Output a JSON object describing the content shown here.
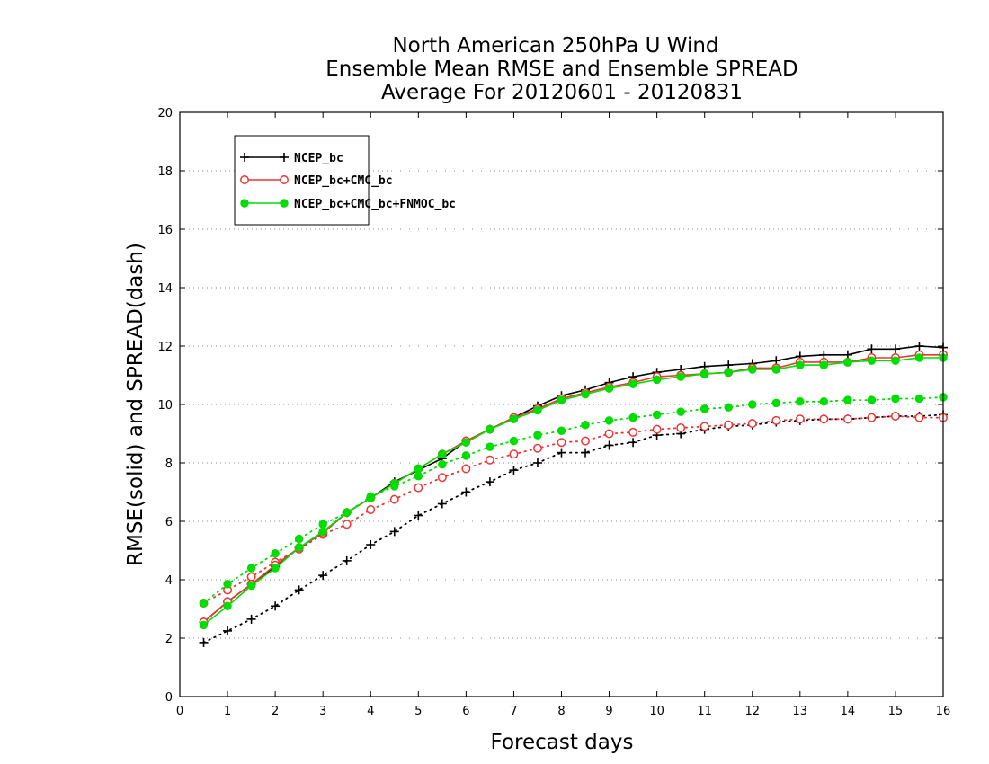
{
  "chart_data": {
    "type": "line",
    "title": [
      "North American 250hPa U Wind",
      "Ensemble Mean RMSE and Ensemble SPREAD",
      "Average For 20120601 - 20120831"
    ],
    "xlabel": "Forecast days",
    "ylabel": "RMSE(solid) and SPREAD(dash)",
    "xlim": [
      0,
      16
    ],
    "ylim": [
      0,
      20
    ],
    "xticks": [
      0,
      1,
      2,
      3,
      4,
      5,
      6,
      7,
      8,
      9,
      10,
      11,
      12,
      13,
      14,
      15,
      16
    ],
    "yticks": [
      0,
      2,
      4,
      6,
      8,
      10,
      12,
      14,
      16,
      18,
      20
    ],
    "grid": "horizontal dotted",
    "legend_position": "top-left",
    "x": [
      0.5,
      1,
      1.5,
      2,
      2.5,
      3,
      3.5,
      4,
      4.5,
      5,
      5.5,
      6,
      6.5,
      7,
      7.5,
      8,
      8.5,
      9,
      9.5,
      10,
      10.5,
      11,
      11.5,
      12,
      12.5,
      13,
      13.5,
      14,
      14.5,
      15,
      15.5,
      16
    ],
    "series": [
      {
        "name": "NCEP_bc",
        "color": "#000000",
        "marker": "plus",
        "rmse": [
          2.55,
          3.25,
          3.85,
          4.45,
          5.1,
          5.6,
          6.3,
          6.8,
          7.35,
          7.75,
          8.15,
          8.75,
          9.15,
          9.55,
          9.95,
          10.3,
          10.5,
          10.75,
          10.95,
          11.1,
          11.2,
          11.3,
          11.35,
          11.4,
          11.5,
          11.65,
          11.7,
          11.7,
          11.9,
          11.9,
          12.0,
          11.95
        ],
        "spread": [
          1.85,
          2.25,
          2.65,
          3.1,
          3.65,
          4.15,
          4.65,
          5.2,
          5.65,
          6.2,
          6.6,
          7.0,
          7.35,
          7.75,
          8.0,
          8.35,
          8.35,
          8.6,
          8.7,
          8.95,
          9.0,
          9.15,
          9.25,
          9.3,
          9.4,
          9.45,
          9.5,
          9.5,
          9.55,
          9.6,
          9.6,
          9.65
        ]
      },
      {
        "name": "NCEP_bc+CMC_bc",
        "color": "#ee3333",
        "marker": "open-circle",
        "rmse": [
          2.55,
          3.25,
          3.85,
          4.5,
          5.1,
          5.6,
          6.3,
          6.8,
          7.3,
          7.8,
          8.3,
          8.75,
          9.15,
          9.55,
          9.85,
          10.2,
          10.4,
          10.6,
          10.75,
          10.95,
          11.0,
          11.05,
          11.1,
          11.25,
          11.25,
          11.45,
          11.45,
          11.45,
          11.6,
          11.6,
          11.7,
          11.7
        ],
        "spread": [
          3.2,
          3.65,
          4.1,
          4.6,
          5.05,
          5.55,
          5.9,
          6.4,
          6.75,
          7.15,
          7.5,
          7.8,
          8.1,
          8.3,
          8.5,
          8.7,
          8.75,
          9.0,
          9.05,
          9.15,
          9.2,
          9.25,
          9.3,
          9.35,
          9.45,
          9.5,
          9.5,
          9.5,
          9.55,
          9.6,
          9.55,
          9.55
        ]
      },
      {
        "name": "NCEP_bc+CMC_bc+FNMOC_bc",
        "color": "#00dd00",
        "marker": "filled-circle",
        "rmse": [
          2.45,
          3.1,
          3.8,
          4.4,
          5.1,
          5.65,
          6.3,
          6.8,
          7.3,
          7.8,
          8.3,
          8.7,
          9.15,
          9.5,
          9.8,
          10.15,
          10.35,
          10.55,
          10.7,
          10.85,
          10.95,
          11.05,
          11.1,
          11.2,
          11.2,
          11.35,
          11.35,
          11.45,
          11.5,
          11.5,
          11.6,
          11.6
        ],
        "spread": [
          3.2,
          3.85,
          4.4,
          4.9,
          5.4,
          5.9,
          6.3,
          6.85,
          7.2,
          7.55,
          7.95,
          8.25,
          8.55,
          8.75,
          8.95,
          9.1,
          9.3,
          9.45,
          9.55,
          9.65,
          9.75,
          9.85,
          9.9,
          10.0,
          10.05,
          10.1,
          10.1,
          10.15,
          10.15,
          10.2,
          10.2,
          10.25
        ]
      }
    ]
  }
}
